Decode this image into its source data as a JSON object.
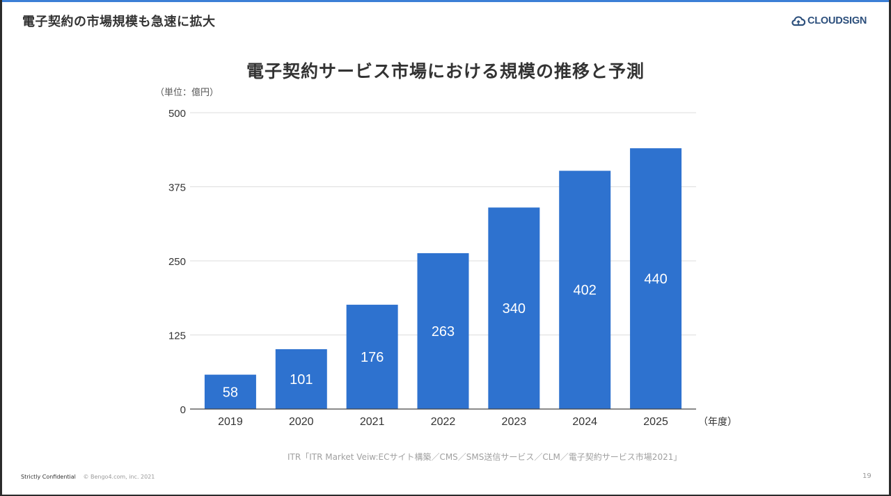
{
  "slide": {
    "title": "電子契約の市場規模も急速に拡大",
    "logo_text": "CLOUDSIGN",
    "page_number": "19",
    "footer": {
      "confidential": "Strictly Confidential",
      "copyright": "© Bengo4.com, inc. 2021"
    },
    "source": "ITR「ITR Market Veiw:ECサイト構築／CMS／SMS送信サービス／CLM／電子契約サービス市場2021」"
  },
  "colors": {
    "bar": "#2e72cf",
    "bar_label": "#ffffff",
    "grid": "#dddddd",
    "axis": "#444444",
    "text": "#333333",
    "accent_line": "#3b7fd6"
  },
  "chart_data": {
    "type": "bar",
    "title": "電子契約サービス市場における規模の推移と予測",
    "unit_label": "（単位：億円）",
    "xlabel": "（年度）",
    "ylabel": "",
    "categories": [
      "2019",
      "2020",
      "2021",
      "2022",
      "2023",
      "2024",
      "2025"
    ],
    "values": [
      58,
      101,
      176,
      263,
      340,
      402,
      440
    ],
    "data_labels": [
      "58",
      "101",
      "176",
      "263",
      "340",
      "402",
      "440"
    ],
    "ylim": [
      0,
      500
    ],
    "yticks": [
      0,
      125,
      250,
      375,
      500
    ],
    "ytick_labels": [
      "0",
      "125",
      "250",
      "375",
      "500"
    ],
    "grid": true,
    "legend": "none"
  }
}
